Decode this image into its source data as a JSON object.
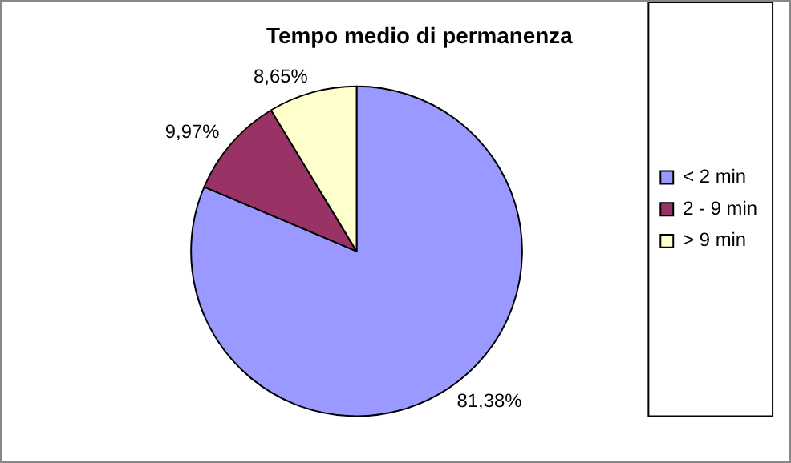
{
  "chart_data": {
    "type": "pie",
    "title": "Tempo medio di permanenza",
    "categories": [
      "< 2 min",
      "2 - 9 min",
      "> 9 min"
    ],
    "values": [
      81.38,
      9.97,
      8.65
    ],
    "value_labels": [
      "81,38%",
      "9,97%",
      "8,65%"
    ],
    "colors": [
      "#9999ff",
      "#993366",
      "#ffffcc"
    ],
    "legend": "right"
  }
}
